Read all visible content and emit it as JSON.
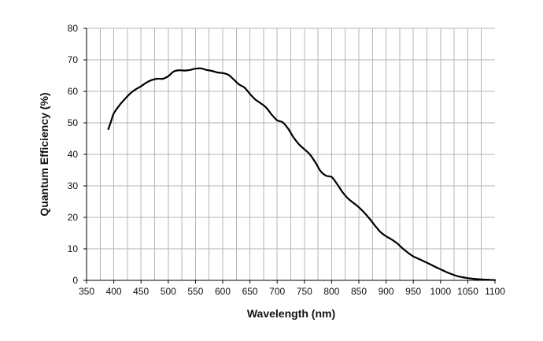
{
  "chart_data": {
    "type": "line",
    "title": "",
    "xlabel": "Wavelength (nm)",
    "ylabel": "Quantum Efficiency (%)",
    "xlim": [
      350,
      1100
    ],
    "ylim": [
      0,
      80
    ],
    "xticks": [
      350,
      400,
      450,
      500,
      550,
      600,
      650,
      700,
      750,
      800,
      850,
      900,
      950,
      1000,
      1050,
      1100
    ],
    "yticks": [
      0,
      10,
      20,
      30,
      40,
      50,
      60,
      70,
      80
    ],
    "x_minor_step": 25,
    "grid": true,
    "legend": "none",
    "line_color": "#000000",
    "grid_color": "#b5b5b5",
    "series": [
      {
        "x": [
          390,
          395,
          400,
          410,
          420,
          430,
          440,
          450,
          460,
          470,
          480,
          490,
          500,
          510,
          520,
          530,
          540,
          550,
          560,
          570,
          580,
          590,
          600,
          610,
          620,
          630,
          640,
          650,
          660,
          670,
          680,
          690,
          700,
          710,
          720,
          730,
          740,
          750,
          760,
          770,
          780,
          790,
          800,
          810,
          820,
          830,
          840,
          850,
          860,
          870,
          880,
          890,
          900,
          910,
          920,
          930,
          940,
          950,
          960,
          970,
          980,
          990,
          1000,
          1010,
          1020,
          1030,
          1040,
          1050,
          1060,
          1070,
          1080,
          1090,
          1100
        ],
        "values": [
          48,
          50.5,
          53,
          55.5,
          57.5,
          59.3,
          60.6,
          61.6,
          62.8,
          63.6,
          64,
          64,
          64.8,
          66.3,
          66.7,
          66.6,
          66.8,
          67.2,
          67.3,
          66.8,
          66.5,
          66,
          65.8,
          65.3,
          63.8,
          62.2,
          61.2,
          59.2,
          57.4,
          56.2,
          54.8,
          52.6,
          50.8,
          50.2,
          48.2,
          45.4,
          43.2,
          41.6,
          40,
          37.5,
          34.6,
          33.2,
          32.8,
          30.6,
          28,
          26,
          24.6,
          23.2,
          21.5,
          19.5,
          17.3,
          15.3,
          14,
          13,
          11.8,
          10.2,
          8.8,
          7.6,
          6.8,
          6,
          5.2,
          4.3,
          3.5,
          2.7,
          2,
          1.4,
          1,
          0.7,
          0.5,
          0.35,
          0.25,
          0.15,
          0.1
        ]
      }
    ]
  }
}
